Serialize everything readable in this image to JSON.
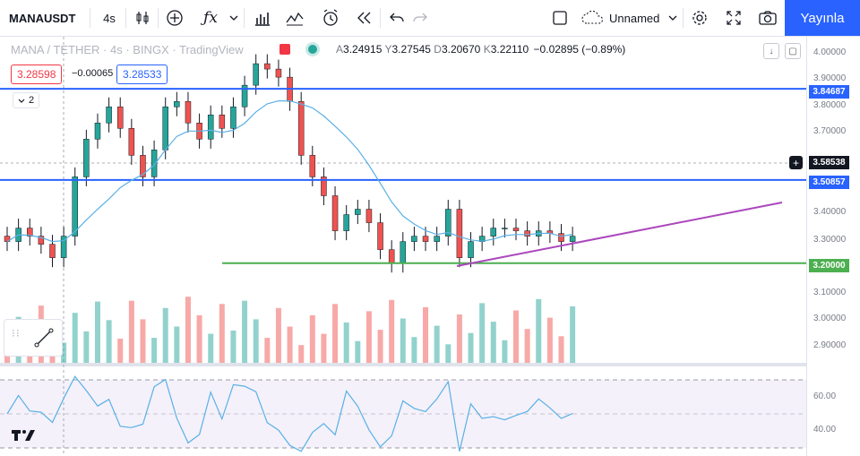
{
  "toolbar": {
    "symbol": "MANAUSDT",
    "interval": "4s",
    "layout_name": "Unnamed",
    "publish_label": "Yayınla"
  },
  "legend": {
    "title": "MANA / TETHER · 4s · BINGX · TradingView",
    "open_label": "A",
    "open": "3.24915",
    "high_label": "Y",
    "high": "3.27545",
    "low_label": "D",
    "low": "3.20670",
    "close_label": "K",
    "close": "3.22110",
    "change": "−0.02895 (−0.89%)",
    "sell_price": "3.28598",
    "spread": "−0.00065",
    "buy_price": "3.28533",
    "collapse_count": "2"
  },
  "price_axis": {
    "ticks": [
      "4.00000",
      "3.90000",
      "3.80000",
      "3.70000",
      "3.40000",
      "3.30000",
      "3.10000",
      "3.00000",
      "2.90000"
    ],
    "tags": [
      {
        "value": "3.84687",
        "color": "#2962ff"
      },
      {
        "value": "3.58538",
        "color": "#131722"
      },
      {
        "value": "3.50857",
        "color": "#2962ff"
      },
      {
        "value": "3.20000",
        "color": "#4caf50"
      }
    ]
  },
  "rsi_axis": {
    "ticks": [
      "60.00",
      "40.00"
    ]
  },
  "chart_data": {
    "type": "line",
    "title": "MANA / TETHER · 4s · BINGX",
    "ylim": [
      2.83,
      4.04
    ],
    "horizontal_lines": [
      3.84687,
      3.50857,
      3.2
    ],
    "close_approx": [
      3.28,
      3.33,
      3.3,
      3.27,
      3.22,
      3.3,
      3.52,
      3.66,
      3.72,
      3.78,
      3.7,
      3.6,
      3.52,
      3.62,
      3.78,
      3.8,
      3.72,
      3.66,
      3.75,
      3.7,
      3.78,
      3.86,
      3.94,
      3.92,
      3.89,
      3.8,
      3.6,
      3.52,
      3.45,
      3.32,
      3.38,
      3.4,
      3.35,
      3.25,
      3.2,
      3.28,
      3.3,
      3.28,
      3.3,
      3.4,
      3.22,
      3.28,
      3.3,
      3.33,
      3.33,
      3.32,
      3.3,
      3.32,
      3.31,
      3.28,
      3.3
    ],
    "rsi_range": [
      30,
      70
    ]
  }
}
